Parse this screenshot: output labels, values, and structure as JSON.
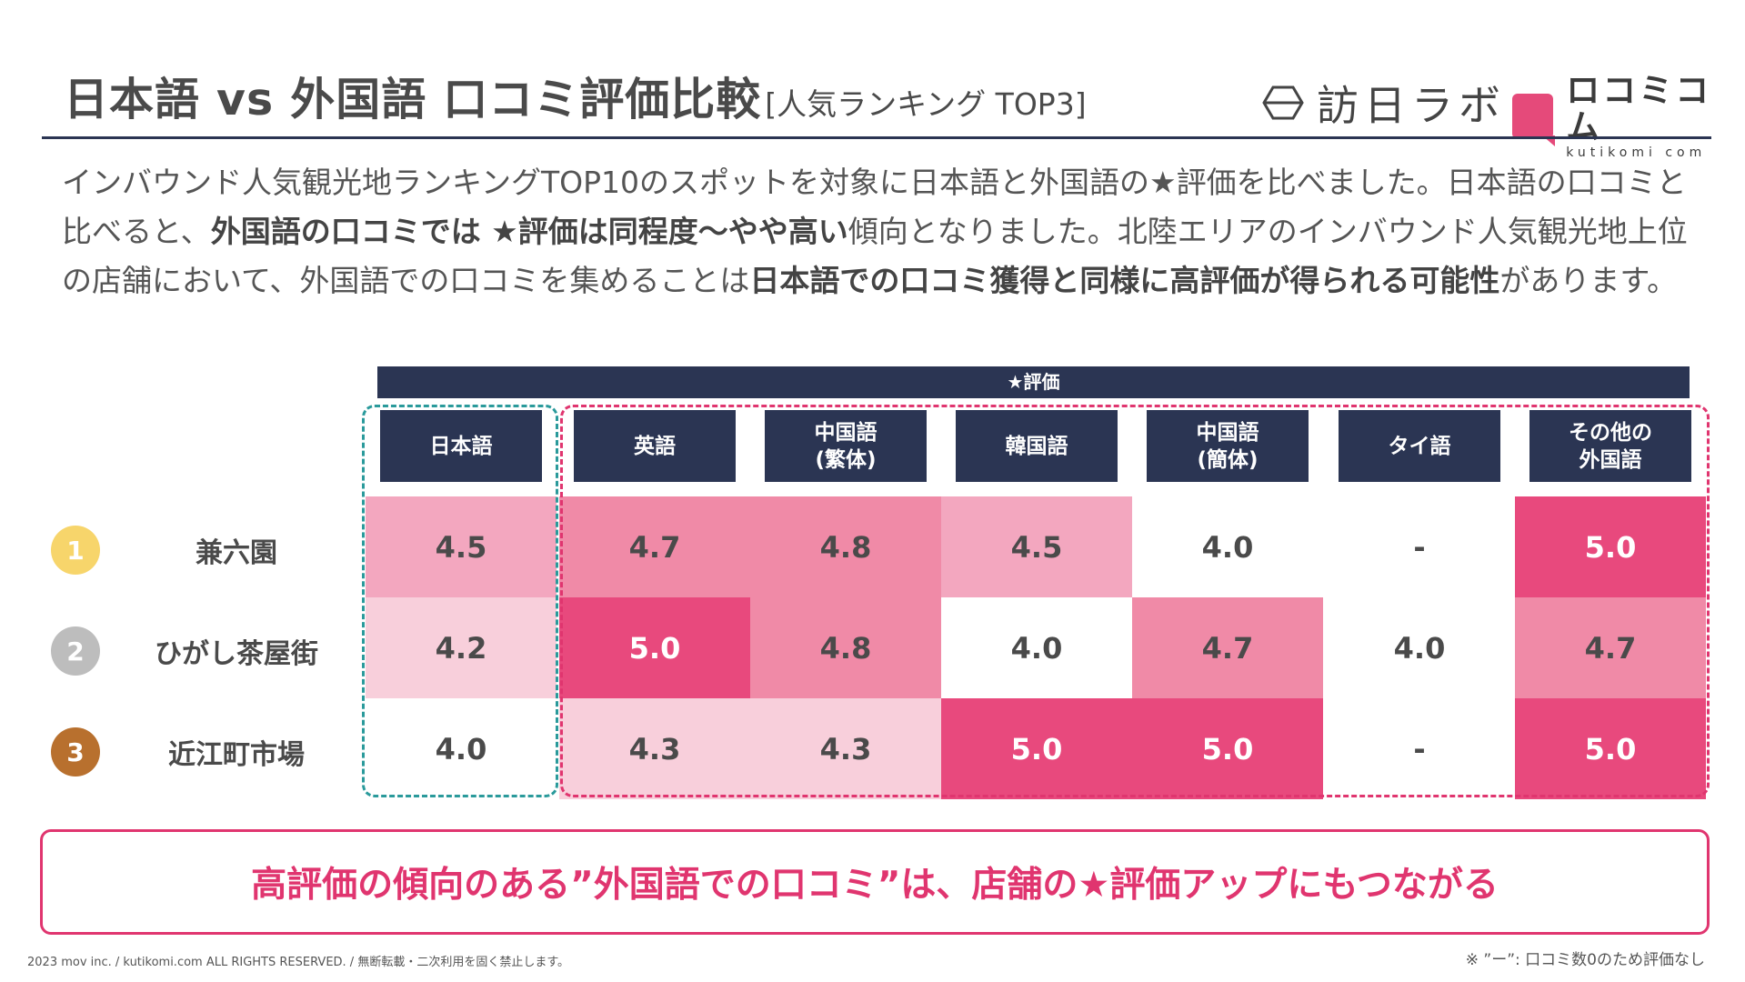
{
  "header": {
    "title": "日本語 vs 外国語 口コミ評価比較",
    "subtitle": "[人気ランキング TOP3]",
    "logo1_text": "訪日ラボ",
    "logo2_name": "ロコミコム",
    "logo2_url": "kutikomi com"
  },
  "description": {
    "p1": "インバウンド人気観光地ランキングTOP10のスポットを対象に日本語と外国語の★評価を比べました。日本語の口コミと比べると、",
    "b1": "外国語の口コミでは ★評価は同程度〜やや高い",
    "p2": "傾向となりました。北陸エリアのインバウンド人気観光地上位の店舗において、外国語での口コミを集めることは",
    "b2": "日本語での口コミ獲得と同様に高評価が得られる可能性",
    "p3": "があります。"
  },
  "table": {
    "group_header": "★評価",
    "columns": [
      "日本語",
      "英語",
      "中国語\n(繁体)",
      "韓国語",
      "中国語\n(簡体)",
      "タイ語",
      "その他の\n外国語"
    ],
    "rows": [
      {
        "rank": "1",
        "rank_color": "#f7d56b",
        "spot": "兼六園",
        "values": [
          "4.5",
          "4.7",
          "4.8",
          "4.5",
          "4.0",
          "-",
          "5.0"
        ]
      },
      {
        "rank": "2",
        "rank_color": "#bdbdbd",
        "spot": "ひがし茶屋街",
        "values": [
          "4.2",
          "5.0",
          "4.8",
          "4.0",
          "4.7",
          "4.0",
          "4.7"
        ]
      },
      {
        "rank": "3",
        "rank_color": "#b8702e",
        "spot": "近江町市場",
        "values": [
          "4.0",
          "4.3",
          "4.3",
          "5.0",
          "5.0",
          "-",
          "5.0"
        ]
      }
    ]
  },
  "colors": {
    "navy": "#2b3553",
    "pink": "#e0356f",
    "teal": "#2a9a9b"
  },
  "callout": "高評価の傾向のある”外国語での口コミ”は、店舗の★評価アップにもつながる",
  "footer": "2023 mov inc. / kutikomi.com ALL RIGHTS RESERVED. / 無断転載・二次利用を固く禁止します。",
  "note": "※ ”ー”: 口コミ数0のため評価なし"
}
